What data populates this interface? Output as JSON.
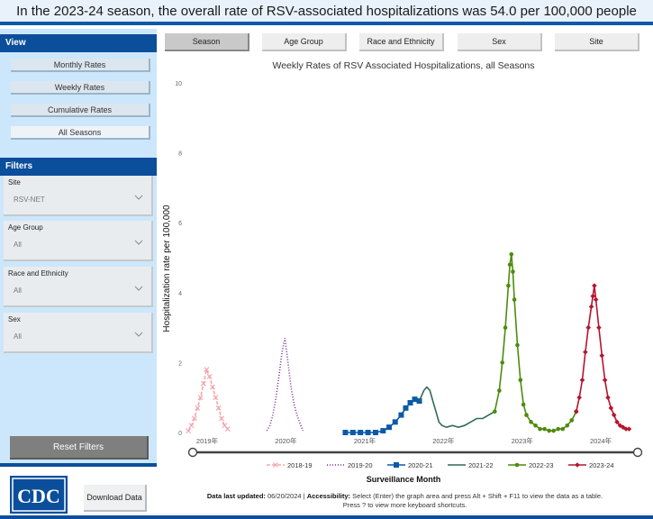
{
  "banner": {
    "text": "In the 2023-24 season, the overall rate of RSV-associated hospitalizations was 54.0 per 100,000 people"
  },
  "sidebar": {
    "view_heading": "View",
    "views": [
      {
        "label": "Monthly Rates",
        "active": false
      },
      {
        "label": "Weekly Rates",
        "active": false
      },
      {
        "label": "Cumulative Rates",
        "active": false
      },
      {
        "label": "All Seasons",
        "active": true
      }
    ],
    "filters_heading": "Filters",
    "filters": [
      {
        "label": "Site",
        "value": "RSV-NET"
      },
      {
        "label": "Age Group",
        "value": "All"
      },
      {
        "label": "Race and Ethnicity",
        "value": "All"
      },
      {
        "label": "Sex",
        "value": "All"
      }
    ],
    "reset_label": "Reset Filters",
    "logo_text": "CDC",
    "download_label": "Download Data"
  },
  "tabs": [
    {
      "label": "Season",
      "active": true
    },
    {
      "label": "Age Group",
      "active": false
    },
    {
      "label": "Race and Ethnicity",
      "active": false
    },
    {
      "label": "Sex",
      "active": false
    },
    {
      "label": "Site",
      "active": false
    }
  ],
  "footer": {
    "updated_label": "Data last updated:",
    "updated_value": "06/20/2024",
    "separator": "|",
    "accessibility_label": "Accessibility:",
    "accessibility_text": "Select (Enter) the graph area and press Alt + Shift + F11 to view the data as a table.",
    "accessibility_text2": "Press ? to view more keyboard shortcuts."
  },
  "chart_data": {
    "type": "line",
    "title": "Weekly Rates of RSV Associated Hospitalizations, all Seasons",
    "xlabel": "Surveillance Month",
    "ylabel": "Hospitalization rate per 100,000",
    "ylim": [
      0,
      10
    ],
    "yticks": [
      0,
      2,
      4,
      6,
      8,
      10
    ],
    "xlim": [
      "2018-10-01",
      "2024-07-15"
    ],
    "xticks": [
      {
        "date": "2019-01-01",
        "label": "2019年"
      },
      {
        "date": "2020-01-01",
        "label": "2020年"
      },
      {
        "date": "2021-01-01",
        "label": "2021年"
      },
      {
        "date": "2022-01-01",
        "label": "2022年"
      },
      {
        "date": "2023-01-01",
        "label": "2023年"
      },
      {
        "date": "2024-01-01",
        "label": "2024年"
      }
    ],
    "grid": false,
    "legend_position": "bottom",
    "series": [
      {
        "name": "2018-19",
        "color": "#f2a6ad",
        "marker": "x",
        "dash": "4,2",
        "points": [
          [
            "2018-10-06",
            0.05
          ],
          [
            "2018-10-20",
            0.2
          ],
          [
            "2018-11-03",
            0.4
          ],
          [
            "2018-11-17",
            0.7
          ],
          [
            "2018-12-01",
            1.0
          ],
          [
            "2018-12-15",
            1.4
          ],
          [
            "2018-12-29",
            1.8
          ],
          [
            "2019-01-12",
            1.6
          ],
          [
            "2019-01-26",
            1.3
          ],
          [
            "2019-02-09",
            1.0
          ],
          [
            "2019-02-23",
            0.7
          ],
          [
            "2019-03-09",
            0.4
          ],
          [
            "2019-03-23",
            0.2
          ],
          [
            "2019-04-06",
            0.1
          ]
        ]
      },
      {
        "name": "2019-20",
        "color": "#7b2a8f",
        "marker": "none",
        "dash": "1,2",
        "points": [
          [
            "2019-10-05",
            0.05
          ],
          [
            "2019-10-19",
            0.2
          ],
          [
            "2019-11-02",
            0.5
          ],
          [
            "2019-11-16",
            1.0
          ],
          [
            "2019-11-30",
            1.6
          ],
          [
            "2019-12-14",
            2.3
          ],
          [
            "2019-12-28",
            2.7
          ],
          [
            "2020-01-11",
            2.0
          ],
          [
            "2020-01-25",
            1.3
          ],
          [
            "2020-02-08",
            0.8
          ],
          [
            "2020-02-22",
            0.5
          ],
          [
            "2020-03-07",
            0.25
          ],
          [
            "2020-03-21",
            0.05
          ]
        ]
      },
      {
        "name": "2020-21",
        "color": "#0b5aa8",
        "marker": "square",
        "dash": "",
        "points": [
          [
            "2020-10-03",
            0.0
          ],
          [
            "2020-11-07",
            0.0
          ],
          [
            "2020-12-12",
            0.0
          ],
          [
            "2021-01-16",
            0.0
          ],
          [
            "2021-02-20",
            0.0
          ],
          [
            "2021-03-27",
            0.05
          ],
          [
            "2021-04-24",
            0.15
          ],
          [
            "2021-05-22",
            0.3
          ],
          [
            "2021-06-19",
            0.5
          ],
          [
            "2021-07-10",
            0.7
          ],
          [
            "2021-07-31",
            0.85
          ],
          [
            "2021-08-21",
            0.95
          ],
          [
            "2021-09-11",
            0.9
          ]
        ]
      },
      {
        "name": "2021-22",
        "color": "#2e6b55",
        "marker": "none",
        "dash": "",
        "points": [
          [
            "2021-09-11",
            0.9
          ],
          [
            "2021-10-02",
            1.2
          ],
          [
            "2021-10-16",
            1.3
          ],
          [
            "2021-10-30",
            1.2
          ],
          [
            "2021-11-13",
            0.9
          ],
          [
            "2021-11-27",
            0.6
          ],
          [
            "2021-12-11",
            0.3
          ],
          [
            "2021-12-25",
            0.2
          ],
          [
            "2022-01-15",
            0.15
          ],
          [
            "2022-02-12",
            0.2
          ],
          [
            "2022-03-12",
            0.15
          ],
          [
            "2022-04-09",
            0.2
          ],
          [
            "2022-05-07",
            0.3
          ],
          [
            "2022-06-04",
            0.4
          ],
          [
            "2022-07-02",
            0.4
          ],
          [
            "2022-07-30",
            0.5
          ],
          [
            "2022-08-27",
            0.6
          ]
        ]
      },
      {
        "name": "2022-23",
        "color": "#4d8b0e",
        "marker": "circle",
        "dash": "",
        "points": [
          [
            "2022-08-27",
            0.6
          ],
          [
            "2022-09-17",
            1.2
          ],
          [
            "2022-10-01",
            2.0
          ],
          [
            "2022-10-15",
            3.0
          ],
          [
            "2022-10-29",
            4.2
          ],
          [
            "2022-11-05",
            4.8
          ],
          [
            "2022-11-12",
            5.1
          ],
          [
            "2022-11-19",
            4.6
          ],
          [
            "2022-11-26",
            3.8
          ],
          [
            "2022-12-10",
            2.5
          ],
          [
            "2022-12-24",
            1.5
          ],
          [
            "2023-01-07",
            0.8
          ],
          [
            "2023-01-21",
            0.5
          ],
          [
            "2023-02-11",
            0.3
          ],
          [
            "2023-03-04",
            0.2
          ],
          [
            "2023-03-25",
            0.1
          ],
          [
            "2023-04-15",
            0.1
          ],
          [
            "2023-05-06",
            0.05
          ],
          [
            "2023-05-27",
            0.05
          ],
          [
            "2023-06-17",
            0.1
          ],
          [
            "2023-07-08",
            0.1
          ],
          [
            "2023-07-29",
            0.2
          ],
          [
            "2023-08-19",
            0.35
          ],
          [
            "2023-09-09",
            0.6
          ]
        ]
      },
      {
        "name": "2023-24",
        "color": "#b5152e",
        "marker": "diamond",
        "dash": "",
        "points": [
          [
            "2023-09-09",
            0.6
          ],
          [
            "2023-09-23",
            1.0
          ],
          [
            "2023-10-07",
            1.5
          ],
          [
            "2023-10-21",
            2.3
          ],
          [
            "2023-11-04",
            3.0
          ],
          [
            "2023-11-18",
            3.6
          ],
          [
            "2023-11-25",
            3.9
          ],
          [
            "2023-12-02",
            4.2
          ],
          [
            "2023-12-09",
            3.8
          ],
          [
            "2023-12-23",
            3.0
          ],
          [
            "2024-01-06",
            2.2
          ],
          [
            "2024-01-20",
            1.5
          ],
          [
            "2024-02-03",
            1.0
          ],
          [
            "2024-02-17",
            0.7
          ],
          [
            "2024-03-02",
            0.5
          ],
          [
            "2024-03-16",
            0.3
          ],
          [
            "2024-03-30",
            0.2
          ],
          [
            "2024-04-13",
            0.15
          ],
          [
            "2024-04-27",
            0.1
          ],
          [
            "2024-05-11",
            0.1
          ]
        ]
      }
    ]
  }
}
